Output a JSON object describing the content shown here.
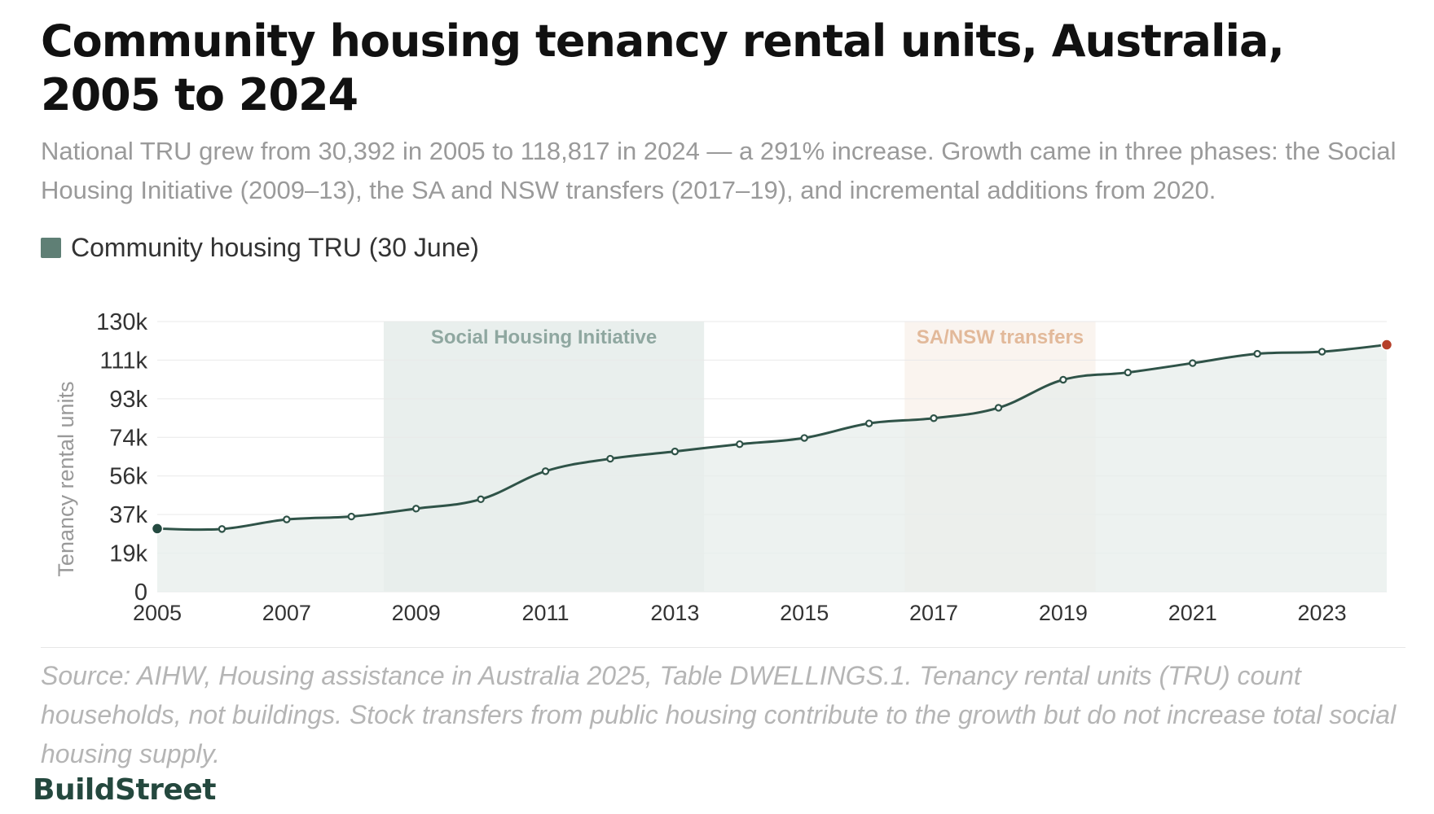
{
  "header": {
    "title": "Community housing tenancy rental units, Australia, 2005 to 2024",
    "subtitle": "National TRU grew from 30,392 in 2005 to 118,817 in 2024 — a 291% increase. Growth came in three phases: the Social Housing Initiative (2009–13), the SA and NSW transfers (2017–19), and incremental additions from 2020."
  },
  "legend": {
    "label": "Community housing TRU (30 June)",
    "icon": "square-swatch-icon"
  },
  "chart_data": {
    "type": "area",
    "title": "Community housing tenancy rental units, Australia, 2005 to 2024",
    "xlabel": "",
    "ylabel": "Tenancy rental units",
    "x": [
      2005,
      2006,
      2007,
      2008,
      2009,
      2010,
      2011,
      2012,
      2013,
      2014,
      2015,
      2016,
      2017,
      2018,
      2019,
      2020,
      2021,
      2022,
      2023,
      2024
    ],
    "series": [
      {
        "name": "Community housing TRU (30 June)",
        "values": [
          30392,
          30200,
          34800,
          36200,
          40000,
          44500,
          58000,
          64000,
          67500,
          71000,
          74000,
          81000,
          83500,
          88500,
          102000,
          105500,
          110000,
          114500,
          115500,
          118817
        ]
      }
    ],
    "xlim": [
      2005,
      2024
    ],
    "ylim": [
      0,
      130000
    ],
    "y_ticks": [
      {
        "value": 0,
        "label": "0"
      },
      {
        "value": 18571,
        "label": "19k"
      },
      {
        "value": 37143,
        "label": "37k"
      },
      {
        "value": 55714,
        "label": "56k"
      },
      {
        "value": 74286,
        "label": "74k"
      },
      {
        "value": 92857,
        "label": "93k"
      },
      {
        "value": 111429,
        "label": "111k"
      },
      {
        "value": 130000,
        "label": "130k"
      }
    ],
    "x_ticks": [
      {
        "value": 2005,
        "label": "2005"
      },
      {
        "value": 2007,
        "label": "2007"
      },
      {
        "value": 2009,
        "label": "2009"
      },
      {
        "value": 2011,
        "label": "2011"
      },
      {
        "value": 2013,
        "label": "2013"
      },
      {
        "value": 2015,
        "label": "2015"
      },
      {
        "value": 2017,
        "label": "2017"
      },
      {
        "value": 2019,
        "label": "2019"
      },
      {
        "value": 2021,
        "label": "2021"
      },
      {
        "value": 2023,
        "label": "2023"
      }
    ],
    "annotations": [
      {
        "label": "Social Housing Initiative",
        "start": 2008.5,
        "end": 2013.45,
        "color": "#8fa7a0",
        "fill": "#cfdcd8"
      },
      {
        "label": "SA/NSW transfers",
        "start": 2016.55,
        "end": 2019.5,
        "color": "#e2b99a",
        "fill": "#f5e6dc"
      }
    ],
    "grid": true,
    "legend_position": "top-left",
    "colors": {
      "line": "#2f5348",
      "area": "#e7eeeb",
      "start_point": "#244a40",
      "end_point": "#b5402a",
      "gridline": "#e9e9e9"
    }
  },
  "footer": {
    "source": "Source: AIHW, Housing assistance in Australia 2025, Table DWELLINGS.1. Tenancy rental units (TRU) count households, not buildings. Stock transfers from public housing contribute to the growth but do not increase total social housing supply.",
    "brand": "BuildStreet"
  }
}
